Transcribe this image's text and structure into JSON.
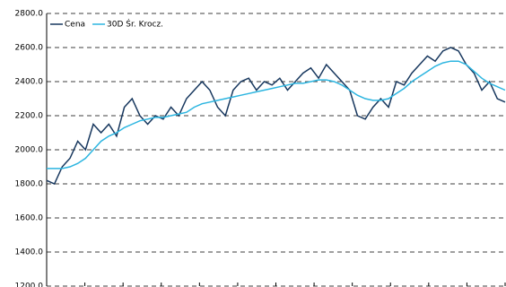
{
  "chart_data": {
    "type": "line",
    "categories": [
      null,
      null,
      null,
      null,
      null,
      null,
      null,
      null,
      null,
      null,
      null,
      null,
      null,
      null,
      null,
      null,
      null,
      null,
      null,
      null,
      null,
      null,
      null,
      null,
      null,
      null,
      null,
      null,
      null,
      null,
      null,
      null,
      null,
      null,
      null,
      null,
      null,
      null,
      null,
      null,
      null,
      null,
      null,
      null,
      null,
      null,
      null,
      null,
      null,
      null,
      null,
      null,
      null,
      null,
      null,
      null,
      null,
      null,
      null,
      null
    ],
    "series": [
      {
        "name": "Cena",
        "color": "#17375e",
        "values": [
          1820,
          1800,
          1900,
          1950,
          2050,
          2000,
          2150,
          2100,
          2150,
          2080,
          2250,
          2300,
          2200,
          2150,
          2200,
          2180,
          2250,
          2200,
          2300,
          2350,
          2400,
          2350,
          2250,
          2200,
          2350,
          2400,
          2420,
          2350,
          2400,
          2380,
          2420,
          2350,
          2400,
          2450,
          2480,
          2420,
          2500,
          2450,
          2400,
          2350,
          2200,
          2180,
          2250,
          2300,
          2250,
          2400,
          2380,
          2450,
          2500,
          2550,
          2520,
          2580,
          2600,
          2580,
          2500,
          2450,
          2350,
          2400,
          2300,
          2280
        ]
      },
      {
        "name": "30D Śr. Krocz.",
        "color": "#2cb5e0",
        "values": [
          1890,
          1890,
          1890,
          1900,
          1920,
          1950,
          2000,
          2050,
          2080,
          2100,
          2130,
          2150,
          2170,
          2180,
          2190,
          2190,
          2200,
          2210,
          2220,
          2250,
          2270,
          2280,
          2290,
          2300,
          2310,
          2320,
          2330,
          2340,
          2350,
          2360,
          2370,
          2380,
          2390,
          2390,
          2400,
          2410,
          2410,
          2400,
          2380,
          2350,
          2320,
          2300,
          2290,
          2290,
          2300,
          2330,
          2360,
          2400,
          2430,
          2460,
          2490,
          2510,
          2520,
          2520,
          2500,
          2460,
          2420,
          2390,
          2370,
          2350
        ]
      }
    ],
    "ylim": [
      1200,
      2800
    ],
    "yticks": [
      {
        "value": 1200,
        "label": "1200.0"
      },
      {
        "value": 1400,
        "label": "1400.0"
      },
      {
        "value": 1600,
        "label": "1600.0"
      },
      {
        "value": 1800,
        "label": "1800.0"
      },
      {
        "value": 2000,
        "label": "2000.0"
      },
      {
        "value": 2200,
        "label": "2200.0"
      },
      {
        "value": 2400,
        "label": "2400.0"
      },
      {
        "value": 2600,
        "label": "2600.0"
      },
      {
        "value": 2800,
        "label": "2800.0"
      }
    ],
    "grid": true,
    "legend": "top-left"
  }
}
